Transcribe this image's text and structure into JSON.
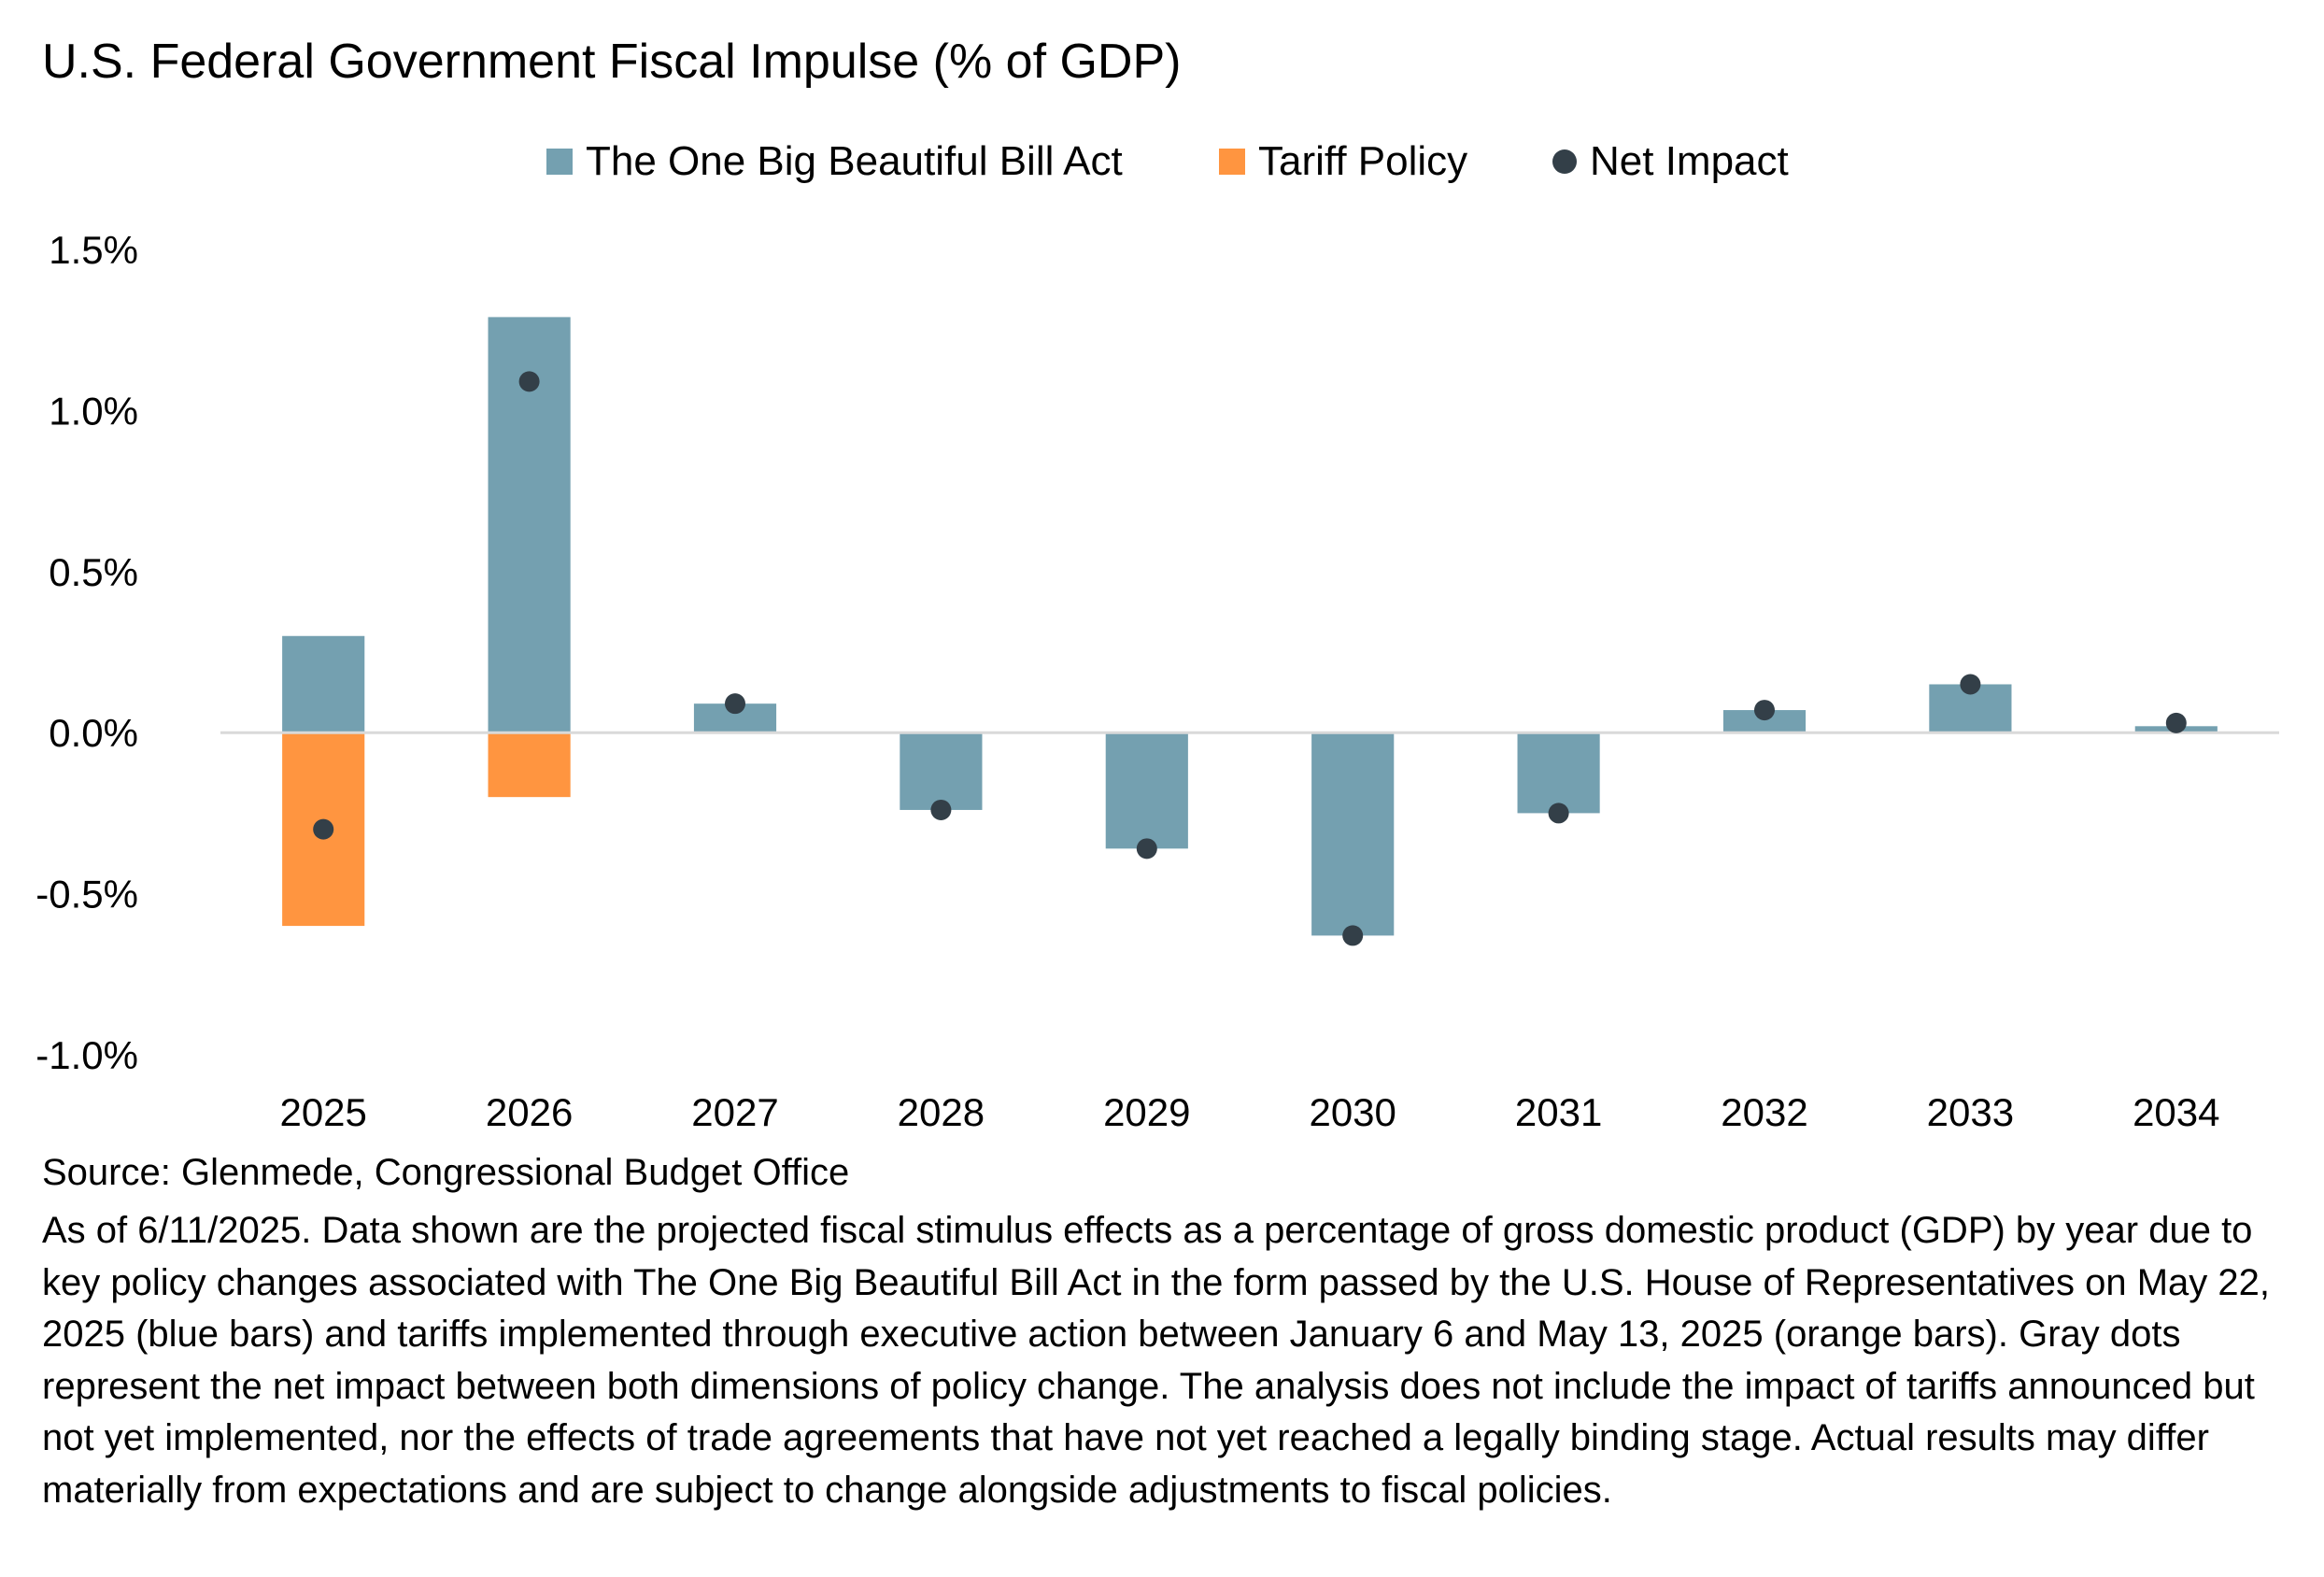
{
  "title": "U.S. Federal Government Fiscal Impulse (% of GDP)",
  "chart_data": {
    "type": "bar",
    "title": "U.S. Federal Government Fiscal Impulse (% of GDP)",
    "xlabel": "",
    "ylabel": "",
    "categories": [
      "2025",
      "2026",
      "2027",
      "2028",
      "2029",
      "2030",
      "2031",
      "2032",
      "2033",
      "2034"
    ],
    "series": [
      {
        "name": "The One Big Beautiful Bill Act",
        "type": "bar",
        "color": "#74a0b0",
        "values": [
          0.3,
          1.29,
          0.09,
          -0.24,
          -0.36,
          -0.63,
          -0.25,
          0.07,
          0.15,
          0.02
        ]
      },
      {
        "name": "Tariff Policy",
        "type": "bar",
        "color": "#ff9540",
        "values": [
          -0.6,
          -0.2,
          0,
          0,
          0,
          0,
          0,
          0,
          0,
          0
        ]
      },
      {
        "name": "Net Impact",
        "type": "scatter",
        "color": "#333f48",
        "values": [
          -0.3,
          1.09,
          0.09,
          -0.24,
          -0.36,
          -0.63,
          -0.25,
          0.07,
          0.15,
          0.03
        ]
      }
    ],
    "ylim": [
      -1.0,
      1.5
    ],
    "yticks": [
      -1.0,
      -0.5,
      0.0,
      0.5,
      1.0,
      1.5
    ],
    "ytick_labels": [
      "-1.0%",
      "-0.5%",
      "0.0%",
      "0.5%",
      "1.0%",
      "1.5%"
    ],
    "grid": false,
    "stacked": true,
    "legend_position": "top-center"
  },
  "legend": {
    "items": [
      {
        "label": "The One Big Beautiful Bill Act",
        "color": "#74a0b0",
        "marker": "square"
      },
      {
        "label": "Tariff Policy",
        "color": "#ff9540",
        "marker": "square"
      },
      {
        "label": "Net Impact",
        "color": "#333f48",
        "marker": "circle"
      }
    ]
  },
  "source": "Source: Glenmede, Congressional Budget Office",
  "note": "As of 6/11/2025. Data shown are the projected fiscal stimulus effects as a percentage of gross domestic product (GDP) by year due to key policy changes associated with The One Big Beautiful Bill Act in the form passed by the U.S. House of Representatives on May 22, 2025 (blue bars) and tariffs implemented through executive action between January 6 and May 13, 2025 (orange bars). Gray dots represent the net impact between both dimensions of policy change. The analysis does not include the impact of tariffs announced but not yet implemented, nor the effects of trade agreements that have not yet reached a legally binding stage. Actual results may differ materially from expectations and are subject to change alongside adjustments to fiscal policies."
}
